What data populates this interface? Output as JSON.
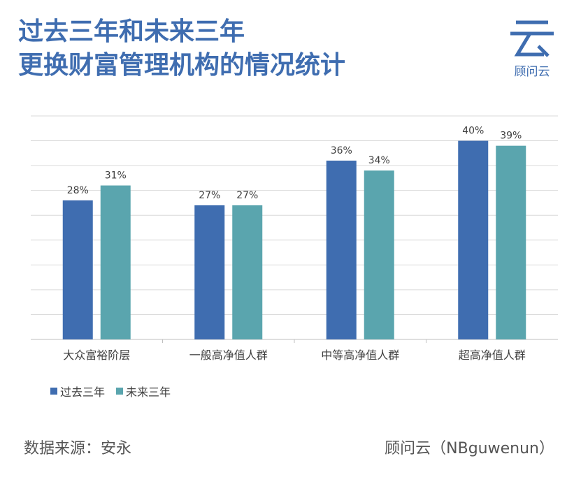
{
  "title": {
    "line1": "过去三年和未来三年",
    "line2": "更换财富管理机构的情况统计"
  },
  "logo": {
    "text": "顾问云"
  },
  "footer": {
    "source": "数据来源：安永",
    "brand": "顾问云（NBguwenun）"
  },
  "colors": {
    "title": "#3f6db0",
    "past": "#3f6db0",
    "future": "#5aa5ae",
    "grid": "#d9d9d9"
  },
  "chart_data": {
    "type": "bar",
    "categories": [
      "大众富裕阶层",
      "一般高净值人群",
      "中等高净值人群",
      "超高净值人群"
    ],
    "series": [
      {
        "name": "过去三年",
        "values": [
          28,
          27,
          36,
          40
        ],
        "labels": [
          "28%",
          "27%",
          "36%",
          "40%"
        ],
        "color": "#3f6db0"
      },
      {
        "name": "未来三年",
        "values": [
          31,
          27,
          34,
          39
        ],
        "labels": [
          "31%",
          "27%",
          "34%",
          "39%"
        ],
        "color": "#5aa5ae"
      }
    ],
    "ylim": [
      0,
      45
    ],
    "grid": true,
    "legend": "bottom-left"
  }
}
